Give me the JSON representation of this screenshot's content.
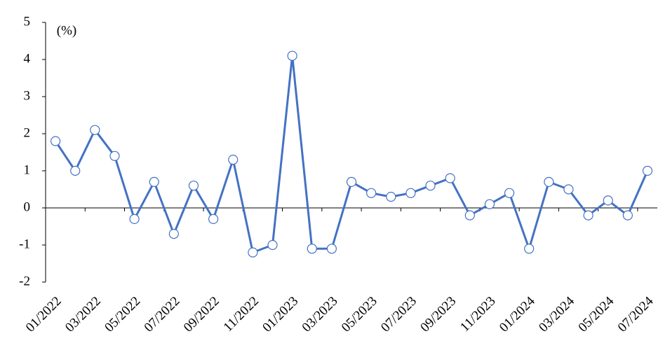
{
  "chart_data": {
    "type": "line",
    "annotation": "(%)",
    "categories": [
      "01/2022",
      null,
      "03/2022",
      null,
      "05/2022",
      null,
      "07/2022",
      null,
      "09/2022",
      null,
      "11/2022",
      null,
      "01/2023",
      null,
      "03/2023",
      null,
      "05/2023",
      null,
      "07/2023",
      null,
      "09/2023",
      null,
      "11/2023",
      null,
      "01/2024",
      null,
      "03/2024",
      null,
      "05/2024",
      null,
      "07/2024"
    ],
    "series": [
      {
        "color": "#4472c4",
        "values": [
          1.8,
          1.0,
          2.1,
          1.4,
          -0.3,
          0.7,
          -0.7,
          0.6,
          -0.3,
          1.3,
          -1.2,
          -1.0,
          4.1,
          -1.1,
          -1.1,
          0.7,
          0.4,
          0.3,
          0.4,
          0.6,
          0.8,
          -0.2,
          0.1,
          0.4,
          -1.1,
          0.7,
          0.5,
          -0.2,
          0.2,
          -0.2,
          1.0
        ]
      }
    ],
    "ylim": [
      -2,
      5
    ],
    "yticks": [
      -2,
      -1,
      0,
      1,
      2,
      3,
      4,
      5
    ],
    "grid": false
  }
}
